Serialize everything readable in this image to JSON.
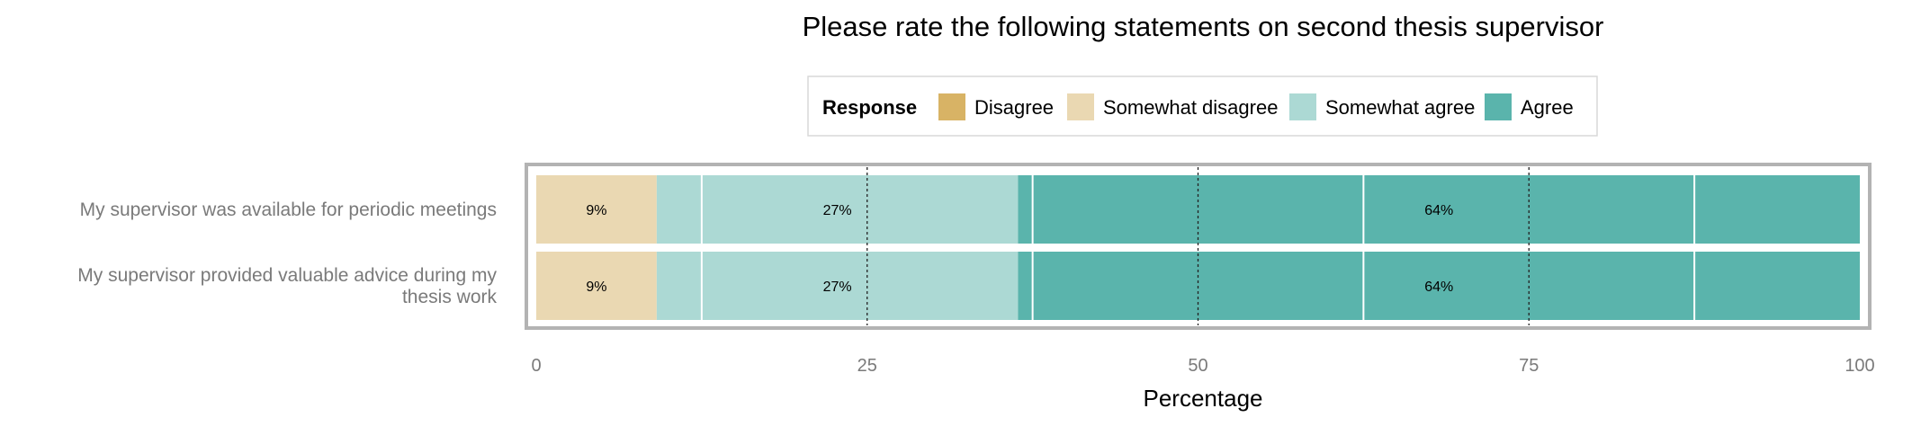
{
  "chart_data": {
    "type": "bar",
    "orientation": "horizontal",
    "stacked": true,
    "title": "Please rate the following statements on second thesis supervisor",
    "xlabel": "Percentage",
    "ylabel": "",
    "xlim": [
      0,
      100
    ],
    "xticks": [
      "0",
      "25",
      "50",
      "75",
      "100"
    ],
    "grid": true,
    "legend": {
      "title": "Response",
      "position": "top",
      "entries": [
        "Disagree",
        "Somewhat disagree",
        "Somewhat agree",
        "Agree"
      ]
    },
    "categories": [
      [
        "My supervisor was available for periodic meetings"
      ],
      [
        "My supervisor provided valuable advice during my",
        "thesis work"
      ]
    ],
    "series": [
      {
        "name": "Disagree",
        "color": "#d8b365",
        "values": [
          0,
          0
        ],
        "labels": [
          "",
          ""
        ]
      },
      {
        "name": "Somewhat disagree",
        "color": "#ead8b2",
        "values": [
          9.1,
          9.1
        ],
        "labels": [
          "9%",
          "9%"
        ]
      },
      {
        "name": "Somewhat agree",
        "color": "#acd9d4",
        "values": [
          27.3,
          27.3
        ],
        "labels": [
          "27%",
          "27%"
        ]
      },
      {
        "name": "Agree",
        "color": "#5ab4ac",
        "values": [
          63.6,
          63.6
        ],
        "labels": [
          "64%",
          "64%"
        ]
      }
    ]
  }
}
